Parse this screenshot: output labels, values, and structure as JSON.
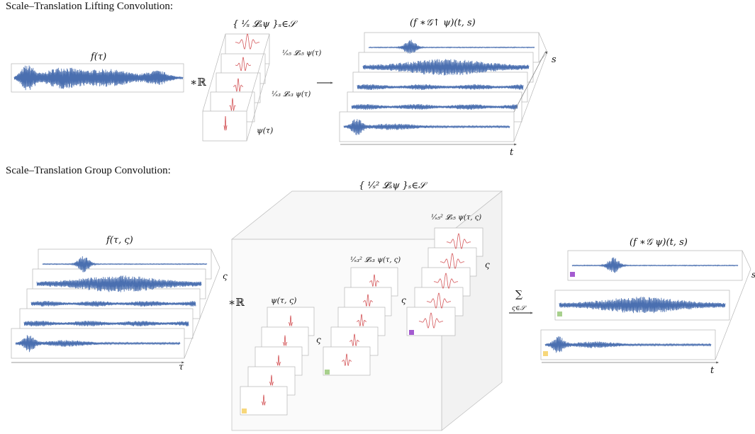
{
  "sections": {
    "lifting_title": "Scale–Translation Lifting Convolution:",
    "group_title": "Scale–Translation Group Convolution:"
  },
  "lifting": {
    "input_label": "f(τ)",
    "conv_op": "∗ℝ",
    "filter_bank_label": "{ ¹⁄ₛ 𝓛ₛψ }ₛ∈𝒮",
    "filter_labels": [
      "¹⁄ₛ₅ 𝓛ₛ₅ ψ(τ)",
      "¹⁄ₛ₃ 𝓛ₛ₃ ψ(τ)",
      "ψ(τ)"
    ],
    "output_label": "(f ∗𝒢↑ ψ)(t, s)",
    "axis_s": "s",
    "axis_t": "t"
  },
  "group": {
    "input_label": "f(τ, ς)",
    "conv_op": "∗ℝ",
    "axis_varsigma": "ς",
    "axis_tau": "τ",
    "filter_bank_label": "{ ¹⁄ₛ² 𝓛ₛψ }ₛ∈𝒮",
    "filter_labels": [
      "¹⁄ₛ₅² 𝓛ₛ₅ ψ(τ, ς)",
      "¹⁄ₛ₃² 𝓛ₛ₃ ψ(τ, ς)",
      "ψ(τ, ς)"
    ],
    "sum_op": "∑",
    "sum_sub": "ς∈𝒮",
    "output_label": "(f ∗𝒢 ψ)(t, s)",
    "axis_t": "t",
    "axis_s": "s"
  },
  "colors": {
    "signal": "#4a6fb0",
    "filter": "#d4575a",
    "frame": "#9a9a9a",
    "marker_purple": "#a45bd0",
    "marker_green": "#a8d08d",
    "marker_yellow": "#f7d77a"
  }
}
